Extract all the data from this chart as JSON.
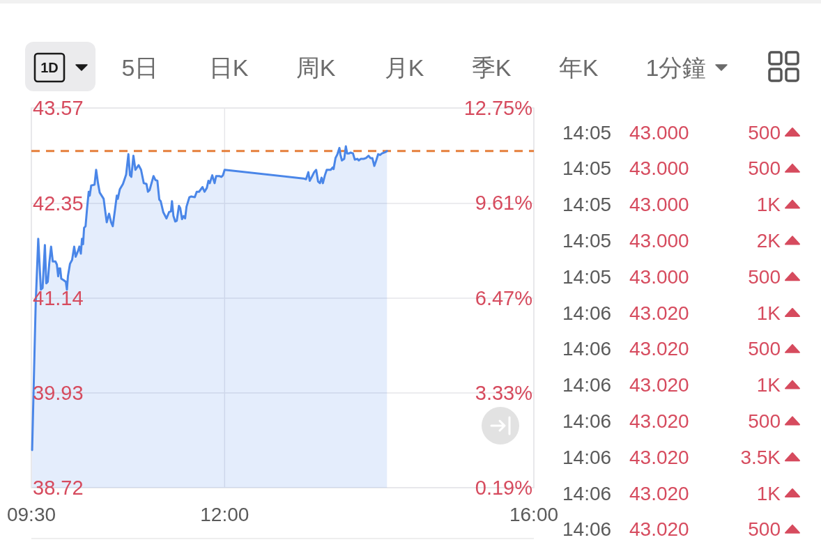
{
  "chart_data": [
    {
      "type": "other",
      "annotations": [
        "1D",
        "5日",
        "日K",
        "周K",
        "月K",
        "季K",
        "年K",
        "1分鐘"
      ]
    },
    {
      "type": "area",
      "color": "#4a86e8",
      "x": [
        9.51,
        9.556,
        9.589,
        9.623,
        9.645,
        9.675,
        9.693,
        9.712,
        9.731,
        9.755,
        9.777,
        9.811,
        9.83,
        9.847,
        9.86,
        9.873,
        9.887,
        9.919,
        9.946,
        9.96,
        9.973,
        10.0,
        10.027,
        10.054,
        10.073,
        10.102,
        10.121,
        10.14,
        10.155,
        10.169,
        10.182,
        10.201,
        10.22,
        10.242,
        10.255,
        10.274,
        10.317,
        10.338,
        10.362,
        10.384,
        10.435,
        10.456,
        10.475,
        10.505,
        10.532,
        10.553,
        10.583,
        10.605,
        10.618,
        10.644,
        10.685,
        10.726,
        10.755,
        10.776,
        10.793,
        10.82,
        10.846,
        10.887,
        10.919,
        10.954,
        10.989,
        11.008,
        11.029,
        11.08,
        11.105,
        11.13,
        11.155,
        11.173,
        11.206,
        11.248,
        11.281,
        11.306,
        11.319,
        11.338,
        11.361,
        11.381,
        11.409,
        11.426,
        11.449,
        11.469,
        11.489,
        11.507,
        11.544,
        11.569,
        11.614,
        11.639,
        11.669,
        11.714,
        11.74,
        11.77,
        11.79,
        11.808,
        11.84,
        11.87,
        11.89,
        11.932,
        11.958,
        11.978,
        12.0,
        13.02,
        13.053,
        13.083,
        13.101,
        13.133,
        13.158,
        13.184,
        13.209,
        13.233,
        13.254,
        13.271,
        13.297,
        13.321,
        13.372,
        13.397,
        13.409,
        13.434,
        13.459,
        13.485,
        13.497,
        13.517,
        13.547,
        13.568,
        13.585,
        13.61,
        13.628,
        13.66,
        13.684,
        13.718,
        13.735,
        13.76,
        13.798,
        13.828,
        13.861,
        13.886,
        13.911,
        13.936,
        13.961,
        13.986,
        14.011,
        14.036,
        14.061,
        14.087,
        14.1
      ],
      "values": [
        39.2,
        41.07,
        41.9,
        41.25,
        41.27,
        41.82,
        41.33,
        41.35,
        41.58,
        41.8,
        41.61,
        41.61,
        41.57,
        41.42,
        41.52,
        41.52,
        41.39,
        41.37,
        41.35,
        41.25,
        41.42,
        41.58,
        41.63,
        41.8,
        41.67,
        41.74,
        41.8,
        41.71,
        41.9,
        41.83,
        42.04,
        42.06,
        42.28,
        42.5,
        42.45,
        42.58,
        42.59,
        42.78,
        42.61,
        42.49,
        42.41,
        42.25,
        42.11,
        42.22,
        42.11,
        42.06,
        42.28,
        42.45,
        42.41,
        42.53,
        42.6,
        42.72,
        42.98,
        42.71,
        42.69,
        42.96,
        42.78,
        42.84,
        42.78,
        42.61,
        42.6,
        42.5,
        42.52,
        42.7,
        42.65,
        42.64,
        42.4,
        42.38,
        42.24,
        42.16,
        42.24,
        42.25,
        42.38,
        42.19,
        42.12,
        42.13,
        42.32,
        42.29,
        42.15,
        42.19,
        42.16,
        42.31,
        42.43,
        42.44,
        42.43,
        42.5,
        42.5,
        42.56,
        42.5,
        42.55,
        42.64,
        42.61,
        42.71,
        42.61,
        42.7,
        42.7,
        42.69,
        42.71,
        42.78,
        42.67,
        42.66,
        42.75,
        42.64,
        42.7,
        42.75,
        42.78,
        42.63,
        42.61,
        42.68,
        42.61,
        42.71,
        42.78,
        42.78,
        42.81,
        42.79,
        42.93,
        42.98,
        43.06,
        42.98,
        42.9,
        42.92,
        43.08,
        42.99,
        42.99,
        43.0,
        42.99,
        42.91,
        42.92,
        42.9,
        42.92,
        42.92,
        42.93,
        42.96,
        42.93,
        42.93,
        42.83,
        42.9,
        42.98,
        42.97,
        42.99,
        43.0,
        43.01,
        43.02
      ],
      "xlim": [
        9.5,
        16
      ],
      "xticks": [
        {
          "value": 9.5,
          "label": "09:30"
        },
        {
          "value": 12,
          "label": "12:00"
        },
        {
          "value": 16,
          "label": "16:00"
        }
      ],
      "ylim": [
        38.72,
        43.57
      ],
      "yticks": [
        38.72,
        39.93,
        41.14,
        42.35,
        43.57
      ],
      "y2lim": [
        0.19,
        12.75
      ],
      "y2ticks": [
        {
          "value": 0.19,
          "label": "0.19%"
        },
        {
          "value": 3.33,
          "label": "3.33%"
        },
        {
          "value": 6.47,
          "label": "6.47%"
        },
        {
          "value": 9.61,
          "label": "9.61%"
        },
        {
          "value": 12.75,
          "label": "12.75%"
        }
      ],
      "grid": true,
      "ref_lines": [
        {
          "axis": "y",
          "value": 43.02,
          "color": "#e57f3b",
          "line_style": "dashed"
        }
      ]
    },
    {
      "type": "other",
      "annotations": [
        "14:05",
        "43.000",
        "500",
        "14:05",
        "43.000",
        "500",
        "14:05",
        "43.000",
        "1K",
        "14:05",
        "43.000",
        "2K",
        "14:05",
        "43.000",
        "500",
        "14:06",
        "43.020",
        "1K",
        "14:06",
        "43.020",
        "500",
        "14:06",
        "43.020",
        "1K",
        "14:06",
        "43.020",
        "500",
        "14:06",
        "43.020",
        "3.5K",
        "14:06",
        "43.020",
        "1K",
        "14:06",
        "43.020",
        "500"
      ]
    }
  ]
}
